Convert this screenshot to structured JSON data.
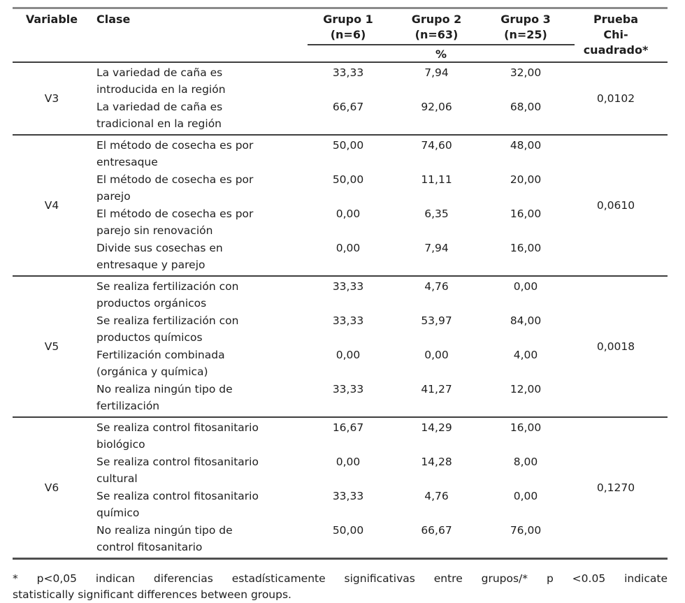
{
  "table": {
    "header": {
      "variable": "Variable",
      "clase": "Clase",
      "groups": [
        {
          "label": "Grupo 1\n(n=6)"
        },
        {
          "label": "Grupo 2\n(n=63)"
        },
        {
          "label": "Grupo 3\n(n=25)"
        }
      ],
      "percent_label": "%",
      "chi_label": "Prueba\nChi-\ncuadrado*"
    },
    "sections": [
      {
        "variable": "V3",
        "chi": "0,0102",
        "rows": [
          {
            "clase": "La variedad de caña es\nintroducida en la región",
            "values": [
              "33,33",
              "7,94",
              "32,00"
            ]
          },
          {
            "clase": "La variedad de caña es\ntradicional en la región",
            "values": [
              "66,67",
              "92,06",
              "68,00"
            ]
          }
        ]
      },
      {
        "variable": "V4",
        "chi": "0,0610",
        "rows": [
          {
            "clase": "El método de cosecha es por\nentresaque",
            "values": [
              "50,00",
              "74,60",
              "48,00"
            ]
          },
          {
            "clase": "El método de cosecha es por\nparejo",
            "values": [
              "50,00",
              "11,11",
              "20,00"
            ]
          },
          {
            "clase": "El método de cosecha es por\nparejo sin renovación",
            "values": [
              "0,00",
              "6,35",
              "16,00"
            ]
          },
          {
            "clase": "Divide sus cosechas en\nentresaque y parejo",
            "values": [
              "0,00",
              "7,94",
              "16,00"
            ]
          }
        ]
      },
      {
        "variable": "V5",
        "chi": "0,0018",
        "rows": [
          {
            "clase": "Se realiza fertilización con\nproductos orgánicos",
            "values": [
              "33,33",
              "4,76",
              "0,00"
            ]
          },
          {
            "clase": "Se realiza fertilización con\nproductos químicos",
            "values": [
              "33,33",
              "53,97",
              "84,00"
            ]
          },
          {
            "clase": "Fertilización combinada\n(orgánica y química)",
            "values": [
              "0,00",
              "0,00",
              "4,00"
            ]
          },
          {
            "clase": "No realiza ningún tipo de\nfertilización",
            "values": [
              "33,33",
              "41,27",
              "12,00"
            ]
          }
        ]
      },
      {
        "variable": "V6",
        "chi": "0,1270",
        "rows": [
          {
            "clase": "Se realiza control fitosanitario\nbiológico",
            "values": [
              "16,67",
              "14,29",
              "16,00"
            ]
          },
          {
            "clase": "Se realiza control fitosanitario\ncultural",
            "values": [
              "0,00",
              "14,28",
              "8,00"
            ]
          },
          {
            "clase": "Se realiza control fitosanitario\nquímico",
            "values": [
              "33,33",
              "4,76",
              "0,00"
            ]
          },
          {
            "clase": "No realiza ningún tipo de\ncontrol fitosanitario",
            "values": [
              "50,00",
              "66,67",
              "76,00"
            ]
          }
        ]
      }
    ]
  },
  "footnote": {
    "line1": "* p<0,05 indican diferencias estadísticamente significativas entre grupos/* p <0.05 indicate",
    "line2": "statistically significant differences between groups."
  }
}
